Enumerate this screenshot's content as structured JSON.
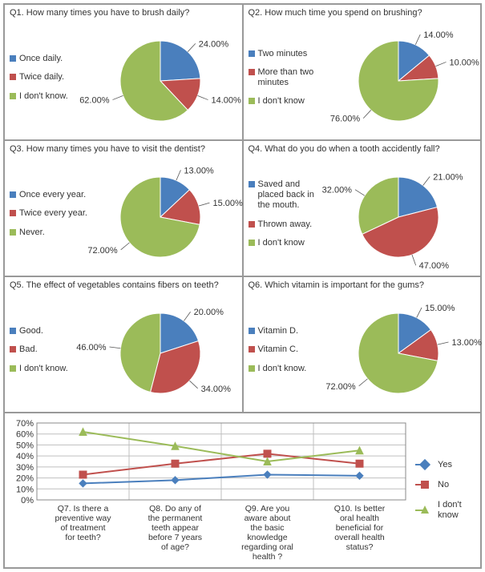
{
  "colors": {
    "blue": "#4a7fbd",
    "red": "#c0504d",
    "green": "#9bbb59",
    "border": "#999999",
    "text": "#333333",
    "bg": "#ffffff"
  },
  "pie_style": {
    "radius": 50,
    "label_fontsize": 11,
    "title_fontsize": 11,
    "start_angle_deg": -90
  },
  "questions": [
    {
      "id": "q1",
      "title": "Q1. How many times you have to brush daily?",
      "legend": [
        "Once daily.",
        "Twice daily.",
        "I don't know."
      ],
      "slices": [
        {
          "label": "24.00%",
          "value": 24,
          "color": "#4a7fbd"
        },
        {
          "label": "14.00%",
          "value": 14,
          "color": "#c0504d"
        },
        {
          "label": "62.00%",
          "value": 62,
          "color": "#9bbb59"
        }
      ]
    },
    {
      "id": "q2",
      "title": "Q2. How much time you spend on brushing?",
      "legend": [
        "Two minutes",
        "More than two minutes",
        "I don't know"
      ],
      "slices": [
        {
          "label": "14.00%",
          "value": 14,
          "color": "#4a7fbd"
        },
        {
          "label": "10.00%",
          "value": 10,
          "color": "#c0504d"
        },
        {
          "label": "76.00%",
          "value": 76,
          "color": "#9bbb59"
        }
      ]
    },
    {
      "id": "q3",
      "title": "Q3. How many times you have to visit the dentist?",
      "legend": [
        "Once every year.",
        "Twice every year.",
        "Never."
      ],
      "slices": [
        {
          "label": "13.00%",
          "value": 13,
          "color": "#4a7fbd"
        },
        {
          "label": "15.00%",
          "value": 15,
          "color": "#c0504d"
        },
        {
          "label": "72.00%",
          "value": 72,
          "color": "#9bbb59"
        }
      ]
    },
    {
      "id": "q4",
      "title": "Q4. What do you do when a tooth accidently fall?",
      "legend": [
        "Saved and placed back in the mouth.",
        "Thrown away.",
        "I don't know"
      ],
      "slices": [
        {
          "label": "21.00%",
          "value": 21,
          "color": "#4a7fbd"
        },
        {
          "label": "47.00%",
          "value": 47,
          "color": "#c0504d"
        },
        {
          "label": "32.00%",
          "value": 32,
          "color": "#9bbb59"
        }
      ]
    },
    {
      "id": "q5",
      "title": "Q5. The effect of vegetables contains fibers on teeth?",
      "legend": [
        "Good.",
        "Bad.",
        "I don't know."
      ],
      "slices": [
        {
          "label": "20.00%",
          "value": 20,
          "color": "#4a7fbd"
        },
        {
          "label": "34.00%",
          "value": 34,
          "color": "#c0504d"
        },
        {
          "label": "46.00%",
          "value": 46,
          "color": "#9bbb59"
        }
      ]
    },
    {
      "id": "q6",
      "title": "Q6. Which vitamin is important for the gums?",
      "legend": [
        "Vitamin D.",
        "Vitamin C.",
        "I don't know."
      ],
      "slices": [
        {
          "label": "15.00%",
          "value": 15,
          "color": "#4a7fbd"
        },
        {
          "label": "13.00%",
          "value": 13,
          "color": "#c0504d"
        },
        {
          "label": "72.00%",
          "value": 72,
          "color": "#9bbb59"
        }
      ]
    }
  ],
  "line_chart": {
    "ylim": [
      0,
      70
    ],
    "ytick_step": 10,
    "ytick_suffix": "%",
    "grid_color": "#bfbfbf",
    "plot_bg": "#ffffff",
    "categories": [
      "Q7. Is there a preventive way of treatment for teeth?",
      "Q8. Do any of the permanent teeth appear before 7 years of age?",
      "Q9. Are you aware about the basic knowledge regarding oral health ?",
      "Q10. Is better oral health beneficial for overall health status?"
    ],
    "series": [
      {
        "name": "Yes",
        "color": "#4a7fbd",
        "marker": "diamond",
        "values": [
          15,
          18,
          23,
          22
        ]
      },
      {
        "name": "No",
        "color": "#c0504d",
        "marker": "square",
        "values": [
          23,
          33,
          42,
          33
        ]
      },
      {
        "name": "I don't know",
        "color": "#9bbb59",
        "marker": "triangle",
        "values": [
          62,
          49,
          35,
          45
        ]
      }
    ],
    "line_width": 2,
    "marker_size": 9,
    "label_fontsize": 11
  }
}
